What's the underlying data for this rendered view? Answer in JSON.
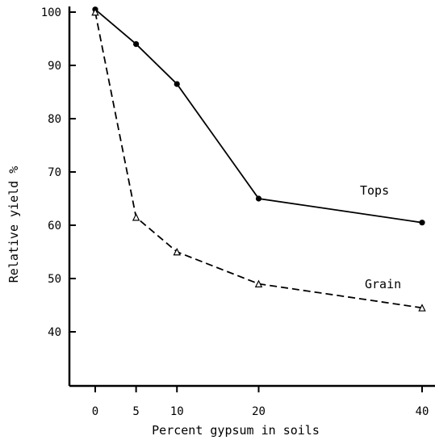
{
  "chart_data": {
    "type": "line",
    "title": "",
    "xlabel": "Percent gypsum in soils",
    "ylabel": "Relative yield %",
    "xlim": [
      -3,
      41
    ],
    "ylim": [
      30,
      101
    ],
    "x_ticks": [
      0,
      5,
      10,
      20,
      40
    ],
    "y_ticks": [
      40,
      50,
      60,
      70,
      80,
      90,
      100
    ],
    "grid": false,
    "legend": "inline labels",
    "series": [
      {
        "name": "Tops",
        "style": "solid",
        "marker": "filled-circle",
        "x": [
          0,
          5,
          10,
          20,
          40
        ],
        "y": [
          100.5,
          94,
          86.5,
          65,
          60.5
        ]
      },
      {
        "name": "Grain",
        "style": "dashed",
        "marker": "open-triangle",
        "x": [
          0,
          5,
          10,
          20,
          40
        ],
        "y": [
          100,
          61.5,
          55,
          49,
          44.5
        ]
      }
    ]
  }
}
